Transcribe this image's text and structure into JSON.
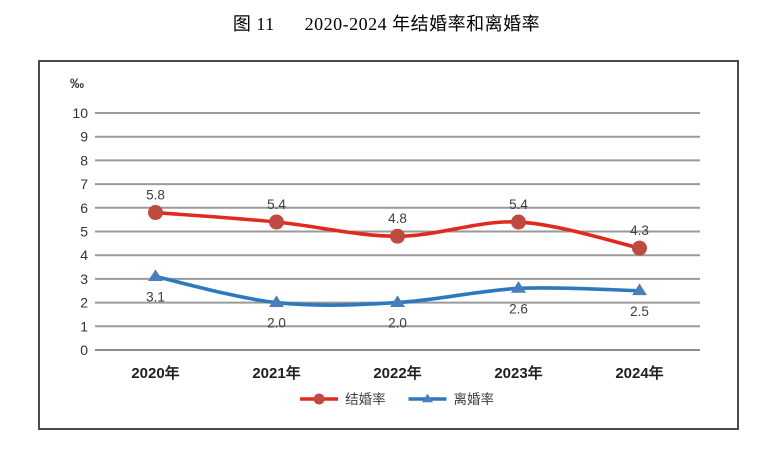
{
  "title": {
    "figure_label": "图 11",
    "text": "2020-2024 年结婚率和离婚率"
  },
  "chart_data": {
    "type": "line",
    "unit_label": "‰",
    "categories": [
      "2020年",
      "2021年",
      "2022年",
      "2023年",
      "2024年"
    ],
    "series": [
      {
        "name": "结婚率",
        "values": [
          5.8,
          5.4,
          4.8,
          5.4,
          4.3
        ],
        "line_color": "#e02a1e",
        "marker_color": "#bf4a40",
        "marker": "circle",
        "label_position": "above"
      },
      {
        "name": "离婚率",
        "values": [
          3.1,
          2.0,
          2.0,
          2.6,
          2.5
        ],
        "line_color": "#2e79bd",
        "marker_color": "#4a7ebb",
        "marker": "triangle",
        "label_position": "below"
      }
    ],
    "ylim": [
      0,
      10
    ],
    "ytick_step": 1,
    "grid": true,
    "legend_position": "bottom",
    "smooth_lines": true,
    "colors": {
      "gridline": "#9a9a9a",
      "axis_line": "#8c8c8c",
      "border": "#4a4a4a",
      "tick_text": "#333333",
      "xlabel_text": "#1f1f1f",
      "value_label_text": "#3f3f3f",
      "legend_text": "#3f3f3f"
    }
  }
}
